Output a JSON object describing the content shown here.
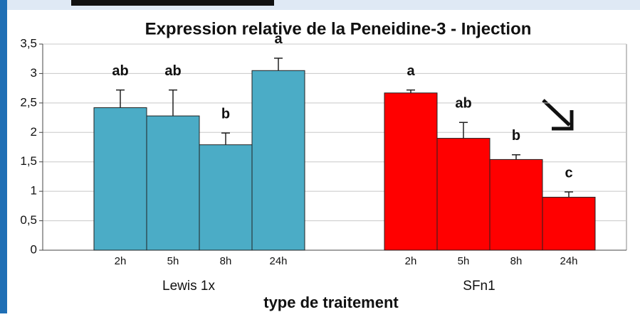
{
  "chart_data": {
    "type": "bar",
    "title": "Expression relative de la Peneidine-3 - Injection",
    "x_label": "type de traitement",
    "ylim": [
      0,
      3.5
    ],
    "yticks": [
      0,
      {
        "value": 0.5,
        "label": "0,5"
      },
      1,
      {
        "value": 1.5,
        "label": "1,5"
      },
      2,
      {
        "value": 2.5,
        "label": "2,5"
      },
      3,
      {
        "value": 3.5,
        "label": "3,5"
      }
    ],
    "grid": true,
    "series": [
      {
        "name": "Lewis 1x",
        "color": "#4bacc6",
        "categories": [
          "2h",
          "5h",
          "8h",
          "24h"
        ],
        "values": [
          2.42,
          2.28,
          1.79,
          3.05
        ],
        "errors": [
          0.3,
          0.44,
          0.2,
          0.21
        ],
        "letters": [
          "ab",
          "ab",
          "b",
          "a"
        ]
      },
      {
        "name": "SFn1",
        "color": "#ff0000",
        "categories": [
          "2h",
          "5h",
          "8h",
          "24h"
        ],
        "values": [
          2.67,
          1.9,
          1.54,
          0.9
        ],
        "errors": [
          0.05,
          0.27,
          0.08,
          0.09
        ],
        "letters": [
          "a",
          "ab",
          "b",
          "c"
        ]
      }
    ]
  }
}
